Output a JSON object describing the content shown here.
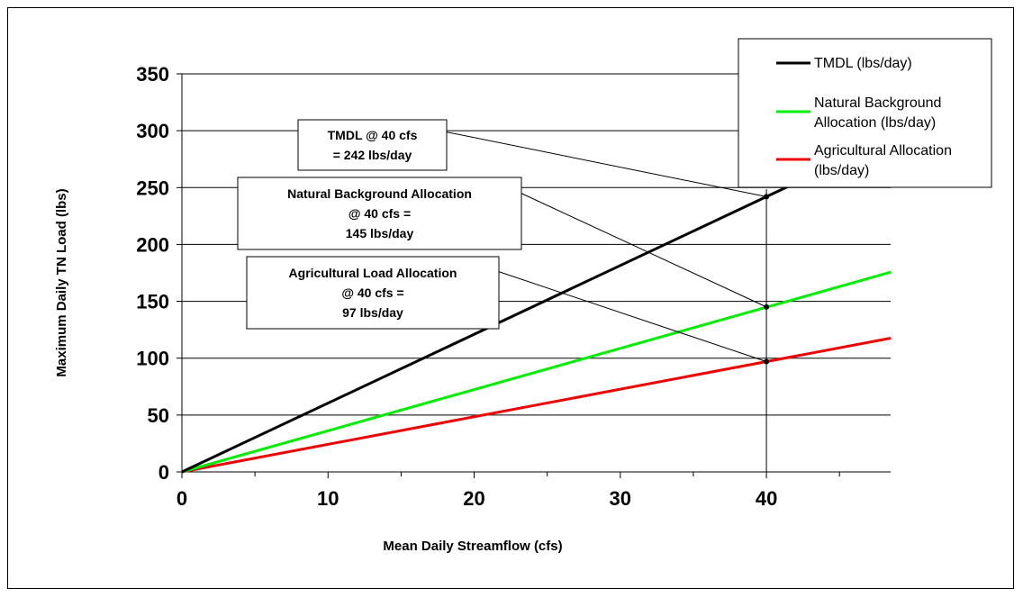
{
  "chart_data": {
    "type": "line",
    "xlabel": "Mean Daily Streamflow (cfs)",
    "ylabel": "Maximum Daily TN Load (lbs)",
    "xlim": [
      0,
      48.5
    ],
    "ylim": [
      0,
      350
    ],
    "x_ticks": [
      "0",
      "10",
      "20",
      "30",
      "40"
    ],
    "x_tick_values": [
      0,
      10,
      20,
      30,
      40
    ],
    "x_minor_step": 5,
    "y_ticks": [
      "0",
      "50",
      "100",
      "150",
      "200",
      "250",
      "300",
      "350"
    ],
    "y_tick_values": [
      0,
      50,
      100,
      150,
      200,
      250,
      300,
      350
    ],
    "grid": "horizontal",
    "legend_position": "top-right",
    "series": [
      {
        "name": "TMDL (lbs/day)",
        "color": "#000000",
        "x": [
          0,
          48.5
        ],
        "y": [
          0,
          293.4
        ]
      },
      {
        "name": "Natural Background Allocation (lbs/day)",
        "color": "#00ee00",
        "x": [
          0,
          48.5
        ],
        "y": [
          0,
          175.6
        ]
      },
      {
        "name": "Agricultural Allocation (lbs/day)",
        "color": "#ee0000",
        "x": [
          0,
          48.5
        ],
        "y": [
          0,
          117.6
        ]
      }
    ],
    "reference_line_x": 40,
    "points": [
      {
        "x": 40,
        "y": 242
      },
      {
        "x": 40,
        "y": 145
      },
      {
        "x": 40,
        "y": 97
      }
    ],
    "annotations": [
      {
        "lines": [
          "TMDL @ 40 cfs",
          "= 242 lbs/day"
        ],
        "target": {
          "x": 40,
          "y": 242
        }
      },
      {
        "lines": [
          "Natural Background Allocation",
          "@ 40 cfs =",
          "145 lbs/day"
        ],
        "target": {
          "x": 40,
          "y": 145
        }
      },
      {
        "lines": [
          "Agricultural Load Allocation",
          "@ 40 cfs =",
          "97 lbs/day"
        ],
        "target": {
          "x": 40,
          "y": 97
        }
      }
    ]
  }
}
